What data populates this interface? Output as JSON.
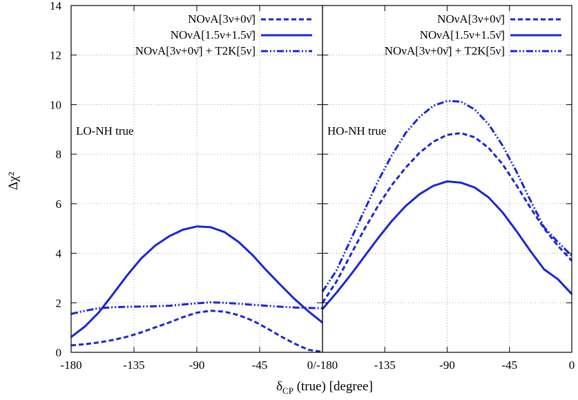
{
  "chart_data": {
    "type": "line",
    "ylabel": "Δχ²",
    "xlabel_main": "δ",
    "xlabel_sub": "CP",
    "xlabel_rest": " (true) [degree]",
    "ylim": [
      0,
      14
    ],
    "yticks": [
      "0",
      "2",
      "4",
      "6",
      "8",
      "10",
      "12",
      "14"
    ],
    "grid": true,
    "legend_position": "top-right",
    "line_color": "#1a25d6",
    "legend": [
      {
        "label": "NOνA[3ν+0ν̄]",
        "style": "dashed"
      },
      {
        "label": "NOνA[1.5ν+1.5ν̄]",
        "style": "solid"
      },
      {
        "label": "NOνA[3ν+0ν̄] + T2K[5ν]",
        "style": "dashdotdot"
      }
    ],
    "panels": [
      {
        "annotation": "LO-NH true",
        "xlim": [
          -180,
          0
        ],
        "xticks": [
          "-180",
          "-135",
          "-90",
          "-45",
          "0/-180"
        ],
        "series": [
          {
            "style": "dashed",
            "x": [
              -180,
              -170,
              -160,
              -150,
              -140,
              -130,
              -120,
              -110,
              -100,
              -90,
              -80,
              -70,
              -60,
              -50,
              -40,
              -30,
              -20,
              -10,
              0
            ],
            "y": [
              0.28,
              0.33,
              0.4,
              0.5,
              0.63,
              0.8,
              1.0,
              1.2,
              1.42,
              1.6,
              1.68,
              1.64,
              1.5,
              1.28,
              0.98,
              0.65,
              0.35,
              0.1,
              0.02
            ]
          },
          {
            "style": "solid",
            "x": [
              -180,
              -170,
              -160,
              -150,
              -140,
              -130,
              -120,
              -110,
              -100,
              -90,
              -80,
              -70,
              -60,
              -50,
              -40,
              -30,
              -20,
              -10,
              0
            ],
            "y": [
              0.62,
              1.05,
              1.62,
              2.35,
              3.1,
              3.78,
              4.3,
              4.68,
              4.95,
              5.08,
              5.05,
              4.85,
              4.45,
              3.92,
              3.3,
              2.72,
              2.15,
              1.65,
              1.2
            ]
          },
          {
            "style": "dashdotdot",
            "x": [
              -180,
              -170,
              -160,
              -150,
              -140,
              -130,
              -120,
              -110,
              -100,
              -90,
              -80,
              -70,
              -60,
              -50,
              -40,
              -30,
              -20,
              -10,
              0
            ],
            "y": [
              1.55,
              1.68,
              1.78,
              1.82,
              1.84,
              1.85,
              1.86,
              1.88,
              1.93,
              1.98,
              2.02,
              2.0,
              1.96,
              1.92,
              1.88,
              1.84,
              1.81,
              1.79,
              1.78
            ]
          }
        ]
      },
      {
        "annotation": "HO-NH true",
        "xlim": [
          -180,
          0
        ],
        "xticks": [
          "-180",
          "-135",
          "-90",
          "-45",
          "0"
        ],
        "series": [
          {
            "style": "dashed",
            "x": [
              -180,
              -170,
              -160,
              -150,
              -140,
              -130,
              -120,
              -110,
              -100,
              -90,
              -80,
              -70,
              -60,
              -50,
              -40,
              -30,
              -20,
              -10,
              0
            ],
            "y": [
              2.0,
              2.85,
              3.9,
              4.95,
              5.9,
              6.75,
              7.45,
              8.05,
              8.5,
              8.78,
              8.85,
              8.68,
              8.25,
              7.6,
              6.75,
              5.85,
              5.0,
              4.3,
              3.7
            ]
          },
          {
            "style": "solid",
            "x": [
              -180,
              -170,
              -160,
              -150,
              -140,
              -130,
              -120,
              -110,
              -100,
              -90,
              -80,
              -70,
              -60,
              -50,
              -40,
              -30,
              -20,
              -10,
              0
            ],
            "y": [
              1.75,
              2.4,
              3.1,
              3.85,
              4.6,
              5.3,
              5.9,
              6.38,
              6.72,
              6.9,
              6.85,
              6.65,
              6.25,
              5.65,
              4.9,
              4.1,
              3.35,
              2.95,
              2.35
            ]
          },
          {
            "style": "dashdotdot",
            "x": [
              -180,
              -170,
              -160,
              -150,
              -140,
              -130,
              -120,
              -110,
              -100,
              -90,
              -80,
              -70,
              -60,
              -50,
              -40,
              -30,
              -20,
              -10,
              0
            ],
            "y": [
              2.45,
              3.3,
              4.5,
              5.7,
              6.9,
              7.95,
              8.85,
              9.5,
              9.95,
              10.15,
              10.12,
              9.8,
              9.2,
              8.35,
              7.3,
              6.15,
              5.05,
              4.45,
              3.9
            ]
          }
        ]
      }
    ]
  }
}
